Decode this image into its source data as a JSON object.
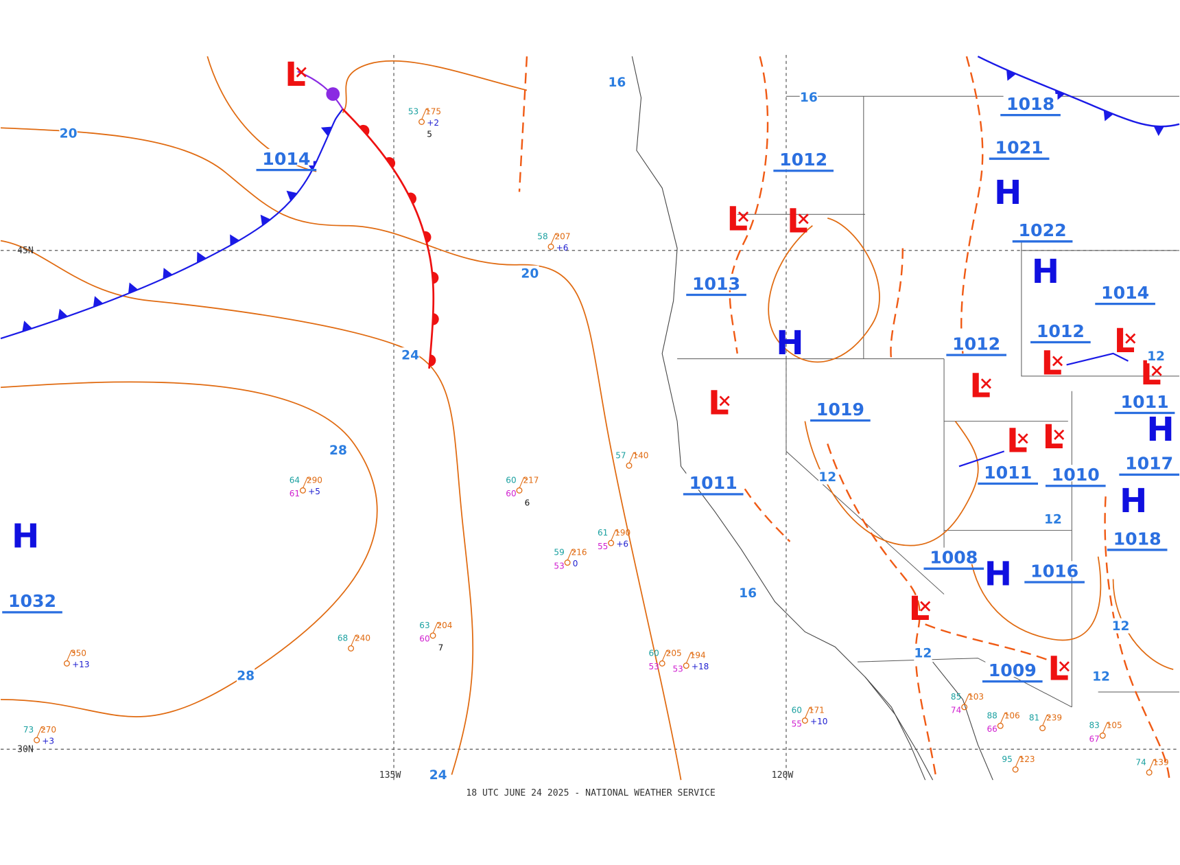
{
  "map": {
    "footer": "18 UTC JUNE 24 2025 - NATIONAL WEATHER SERVICE",
    "grid_labels": [
      "45N",
      "30N",
      "135W",
      "120W"
    ],
    "highs": [
      "H",
      "H",
      "H",
      "H",
      "H",
      "H",
      "H"
    ],
    "lows": [
      "L",
      "L",
      "L",
      "L",
      "L",
      "L",
      "L",
      "L",
      "L",
      "L",
      "L",
      "L"
    ],
    "pressure_labels": [
      "1014",
      "1032",
      "1013",
      "1012",
      "1019",
      "1011",
      "1018",
      "1021",
      "1022",
      "1014",
      "1012",
      "1012",
      "1011",
      "1011",
      "1010",
      "1017",
      "1018",
      "1008",
      "1016",
      "1009"
    ],
    "isobar_labels": [
      "20",
      "20",
      "24",
      "24",
      "28",
      "28",
      "16",
      "16",
      "16",
      "12",
      "12",
      "12",
      "12",
      "12",
      "12"
    ],
    "stations": [
      {
        "t": "53",
        "p": "175",
        "c": "+2",
        "w": "5"
      },
      {
        "t": "58",
        "p": "207",
        "c": "+6"
      },
      {
        "t": "64",
        "p": "290",
        "c": "+5",
        "d": "61"
      },
      {
        "t": "60",
        "p": "217",
        "d": "60",
        "w": "6"
      },
      {
        "t": "61",
        "p": "190",
        "c": "+6",
        "d": "55"
      },
      {
        "t": "59",
        "p": "216",
        "c": "0",
        "d": "53"
      },
      {
        "t": "57",
        "p": "140"
      },
      {
        "t": "63",
        "p": "204",
        "d": "60",
        "w": "7"
      },
      {
        "t": "68",
        "p": "240"
      },
      {
        "p": "350",
        "c": "+13"
      },
      {
        "t": "73",
        "p": "270",
        "c": "+3"
      },
      {
        "t": "60",
        "p": "205",
        "d": "53"
      },
      {
        "p": "194",
        "c": "+18",
        "d": "53"
      },
      {
        "t": "60",
        "p": "171",
        "c": "+10",
        "d": "55"
      },
      {
        "t": "81",
        "p": "239"
      },
      {
        "t": "83",
        "p": "105",
        "d": "67"
      },
      {
        "t": "88",
        "p": "106",
        "d": "66"
      },
      {
        "t": "95",
        "p": "123"
      },
      {
        "t": "74",
        "p": "139"
      },
      {
        "t": "85",
        "p": "103",
        "d": "74"
      }
    ]
  }
}
